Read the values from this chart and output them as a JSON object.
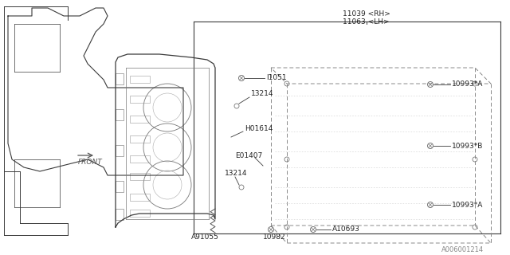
{
  "bg_color": "#ffffff",
  "line_color": "#3a3a3a",
  "text_color": "#222222",
  "gray": "#777777",
  "font_size": 6.0,
  "footer_text": "A006001214",
  "labels": {
    "rh_lh_1": "11039 <RH>",
    "rh_lh_2": "11063 <LH>",
    "I1051": "I1051",
    "13214_top": "13214",
    "H01614": "H01614",
    "10993A_top": "10993*A",
    "10993B": "10993*B",
    "10993A_bot": "10993*A",
    "E01407": "E01407",
    "13214_bot": "13214",
    "A91055": "A91055",
    "10982": "10982",
    "A10693": "A10693",
    "FRONT": "FRONT"
  }
}
